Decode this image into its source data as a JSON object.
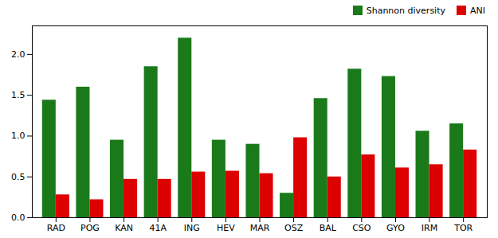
{
  "chart_data": {
    "type": "bar",
    "categories": [
      "RAD",
      "POG",
      "KAN",
      "41A",
      "ING",
      "HEV",
      "MAR",
      "OSZ",
      "BAL",
      "CSO",
      "GYO",
      "IRM",
      "TOR"
    ],
    "series": [
      {
        "name": "Shannon diversity",
        "color": "#1a7a1a",
        "values": [
          1.44,
          1.6,
          0.95,
          1.85,
          2.2,
          0.95,
          0.9,
          0.3,
          1.46,
          1.82,
          1.73,
          1.06,
          1.15
        ]
      },
      {
        "name": "ANI",
        "color": "#dd0000",
        "values": [
          0.28,
          0.22,
          0.47,
          0.47,
          0.56,
          0.57,
          0.54,
          0.98,
          0.5,
          0.77,
          0.61,
          0.65,
          0.83
        ]
      }
    ],
    "ylim": [
      0.0,
      2.35
    ],
    "yticks": [
      {
        "value": 0,
        "label": "0.0"
      },
      0.5,
      {
        "value": 1,
        "label": "1.0"
      },
      1.5,
      {
        "value": 2,
        "label": "2.0"
      }
    ],
    "grid": false,
    "legend": "upper right"
  }
}
